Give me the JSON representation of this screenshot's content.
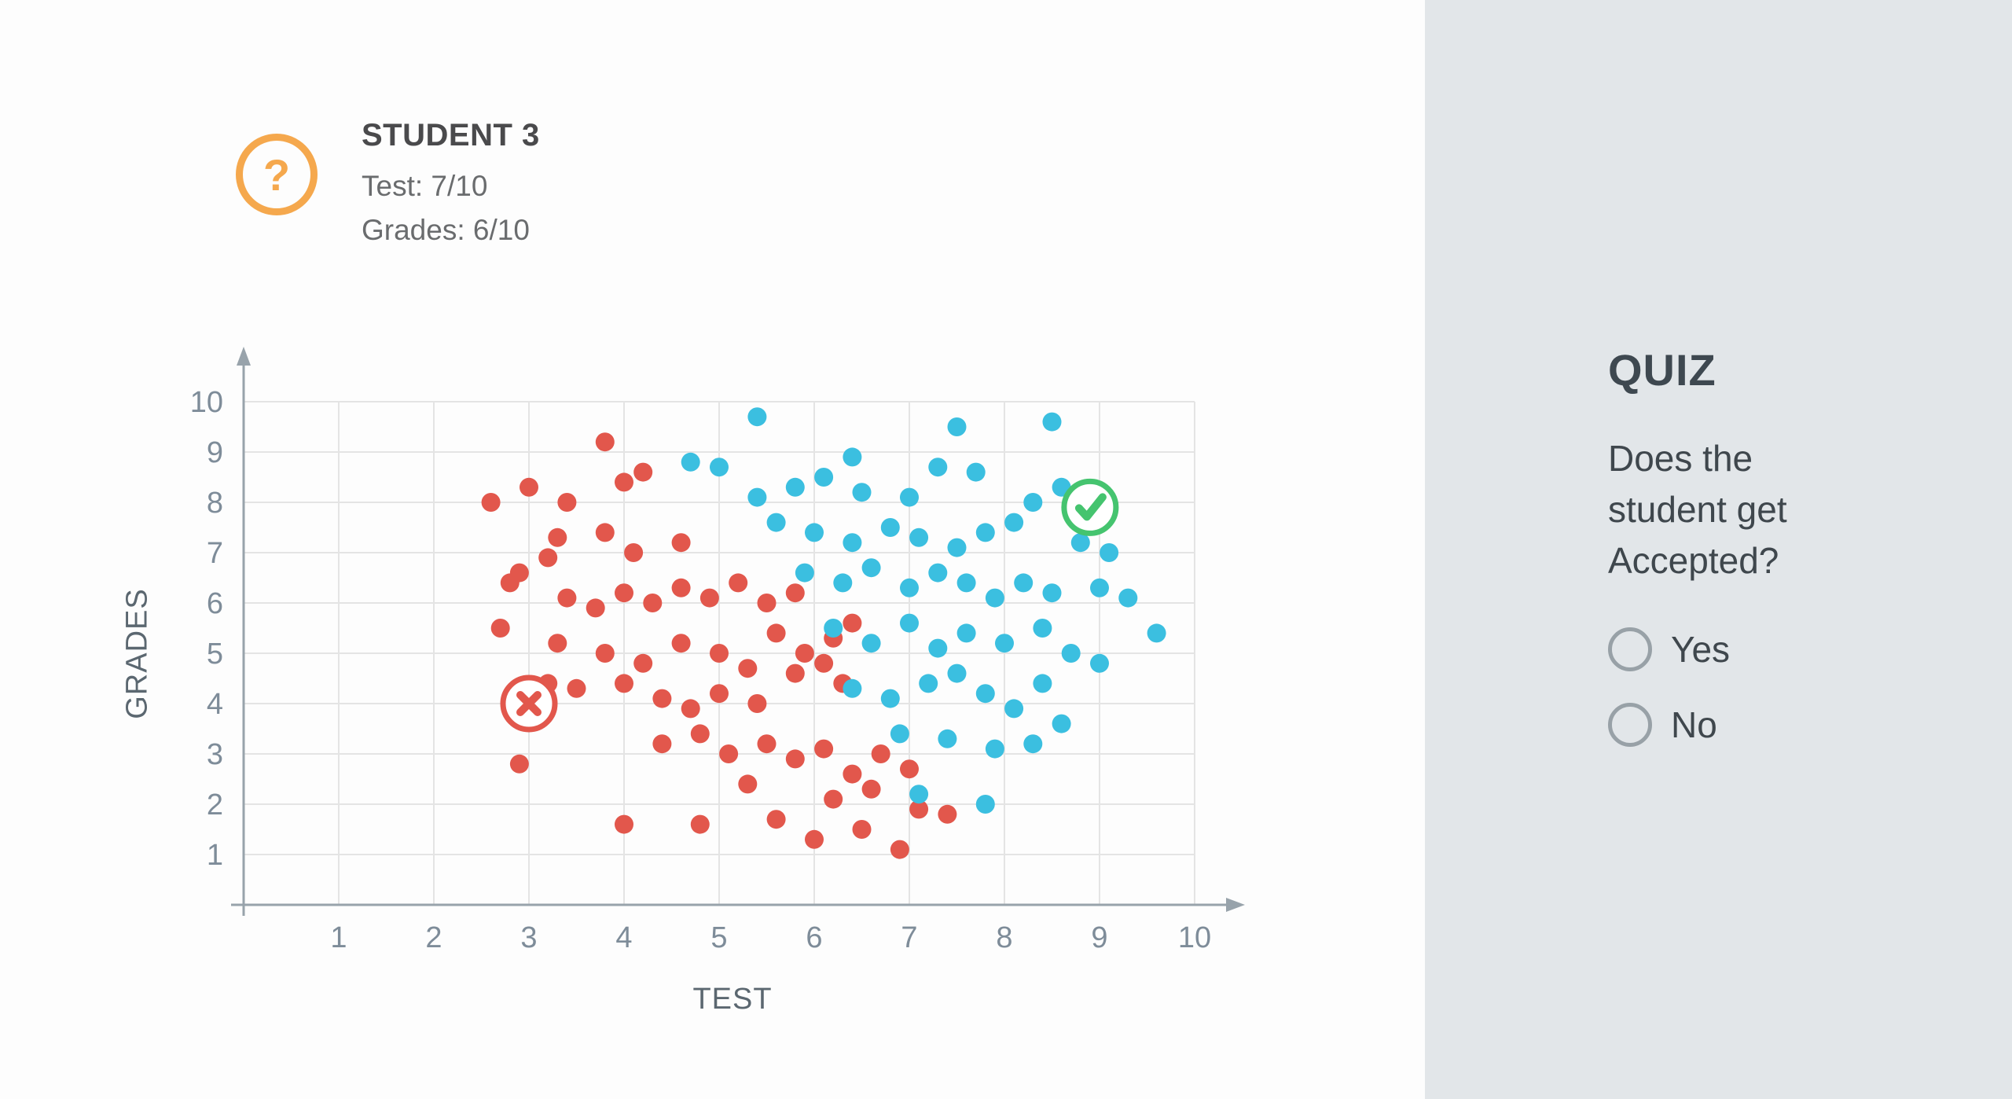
{
  "student_card": {
    "icon_glyph": "?",
    "title": "STUDENT 3",
    "test_line": "Test: 7/10",
    "grades_line": "Grades: 6/10"
  },
  "quiz": {
    "title": "QUIZ",
    "question": "Does the student get Accepted?",
    "options": [
      {
        "label": "Yes"
      },
      {
        "label": "No"
      }
    ]
  },
  "colors": {
    "rejected_red": "#E2574C",
    "accepted_blue": "#3BBFE0",
    "marker_green": "#45C46F",
    "icon_orange": "#F5A84D",
    "panel_gray": "#E2E6E9"
  },
  "chart_data": {
    "type": "scatter",
    "title": "",
    "xlabel": "TEST",
    "ylabel": "GRADES",
    "xlim": [
      0,
      10
    ],
    "ylim": [
      0,
      10
    ],
    "grid": true,
    "point_radius": 12,
    "xticks": [
      1,
      2,
      3,
      4,
      5,
      6,
      7,
      8,
      9,
      10
    ],
    "yticks": [
      1,
      2,
      3,
      4,
      5,
      6,
      7,
      8,
      9,
      10
    ],
    "series": [
      {
        "name": "rejected",
        "color": "#E2574C",
        "points": [
          [
            2.6,
            8.0
          ],
          [
            3.0,
            8.3
          ],
          [
            3.4,
            8.0
          ],
          [
            3.8,
            9.2
          ],
          [
            4.0,
            8.4
          ],
          [
            4.2,
            8.6
          ],
          [
            3.2,
            6.9
          ],
          [
            3.3,
            7.3
          ],
          [
            3.8,
            7.4
          ],
          [
            4.1,
            7.0
          ],
          [
            4.6,
            7.2
          ],
          [
            2.8,
            6.4
          ],
          [
            2.9,
            6.6
          ],
          [
            3.4,
            6.1
          ],
          [
            3.7,
            5.9
          ],
          [
            4.0,
            6.2
          ],
          [
            4.3,
            6.0
          ],
          [
            4.6,
            6.3
          ],
          [
            4.9,
            6.1
          ],
          [
            5.2,
            6.4
          ],
          [
            5.5,
            6.0
          ],
          [
            5.8,
            6.2
          ],
          [
            2.7,
            5.5
          ],
          [
            3.3,
            5.2
          ],
          [
            3.8,
            5.0
          ],
          [
            4.2,
            4.8
          ],
          [
            4.6,
            5.2
          ],
          [
            5.0,
            5.0
          ],
          [
            5.3,
            4.7
          ],
          [
            5.6,
            5.4
          ],
          [
            5.9,
            5.0
          ],
          [
            6.2,
            5.3
          ],
          [
            6.4,
            5.6
          ],
          [
            3.2,
            4.4
          ],
          [
            3.5,
            4.3
          ],
          [
            4.0,
            4.4
          ],
          [
            4.4,
            4.1
          ],
          [
            4.7,
            3.9
          ],
          [
            5.0,
            4.2
          ],
          [
            5.4,
            4.0
          ],
          [
            5.8,
            4.6
          ],
          [
            6.1,
            4.8
          ],
          [
            6.3,
            4.4
          ],
          [
            2.9,
            2.8
          ],
          [
            4.4,
            3.2
          ],
          [
            4.8,
            3.4
          ],
          [
            5.1,
            3.0
          ],
          [
            5.5,
            3.2
          ],
          [
            5.8,
            2.9
          ],
          [
            6.1,
            3.1
          ],
          [
            6.4,
            2.6
          ],
          [
            6.7,
            3.0
          ],
          [
            7.0,
            2.7
          ],
          [
            4.0,
            1.6
          ],
          [
            4.8,
            1.6
          ],
          [
            5.3,
            2.4
          ],
          [
            5.6,
            1.7
          ],
          [
            6.0,
            1.3
          ],
          [
            6.2,
            2.1
          ],
          [
            6.5,
            1.5
          ],
          [
            6.6,
            2.3
          ],
          [
            6.9,
            1.1
          ],
          [
            7.1,
            1.9
          ],
          [
            7.4,
            1.8
          ]
        ]
      },
      {
        "name": "accepted",
        "color": "#3BBFE0",
        "points": [
          [
            5.4,
            9.7
          ],
          [
            7.5,
            9.5
          ],
          [
            8.5,
            9.6
          ],
          [
            6.4,
            8.9
          ],
          [
            4.7,
            8.8
          ],
          [
            5.0,
            8.7
          ],
          [
            5.4,
            8.1
          ],
          [
            5.8,
            8.3
          ],
          [
            6.1,
            8.5
          ],
          [
            6.5,
            8.2
          ],
          [
            7.0,
            8.1
          ],
          [
            7.3,
            8.7
          ],
          [
            7.7,
            8.6
          ],
          [
            8.3,
            8.0
          ],
          [
            8.6,
            8.3
          ],
          [
            5.6,
            7.6
          ],
          [
            6.0,
            7.4
          ],
          [
            6.4,
            7.2
          ],
          [
            6.8,
            7.5
          ],
          [
            7.1,
            7.3
          ],
          [
            7.5,
            7.1
          ],
          [
            7.8,
            7.4
          ],
          [
            8.1,
            7.6
          ],
          [
            8.8,
            7.2
          ],
          [
            9.1,
            7.0
          ],
          [
            5.9,
            6.6
          ],
          [
            6.3,
            6.4
          ],
          [
            6.6,
            6.7
          ],
          [
            7.0,
            6.3
          ],
          [
            7.3,
            6.6
          ],
          [
            7.6,
            6.4
          ],
          [
            7.9,
            6.1
          ],
          [
            8.2,
            6.4
          ],
          [
            8.5,
            6.2
          ],
          [
            9.0,
            6.3
          ],
          [
            9.3,
            6.1
          ],
          [
            6.2,
            5.5
          ],
          [
            6.6,
            5.2
          ],
          [
            7.0,
            5.6
          ],
          [
            7.3,
            5.1
          ],
          [
            7.6,
            5.4
          ],
          [
            8.0,
            5.2
          ],
          [
            8.4,
            5.5
          ],
          [
            8.7,
            5.0
          ],
          [
            9.0,
            4.8
          ],
          [
            9.6,
            5.4
          ],
          [
            6.4,
            4.3
          ],
          [
            6.8,
            4.1
          ],
          [
            7.2,
            4.4
          ],
          [
            7.5,
            4.6
          ],
          [
            7.8,
            4.2
          ],
          [
            8.1,
            3.9
          ],
          [
            8.4,
            4.4
          ],
          [
            6.9,
            3.4
          ],
          [
            7.4,
            3.3
          ],
          [
            7.9,
            3.1
          ],
          [
            8.3,
            3.2
          ],
          [
            8.6,
            3.6
          ],
          [
            7.1,
            2.2
          ],
          [
            7.8,
            2.0
          ]
        ]
      }
    ],
    "markers": [
      {
        "name": "rejected-example",
        "x": 3.0,
        "y": 4.0,
        "symbol": "cross",
        "color": "#E2574C"
      },
      {
        "name": "accepted-example",
        "x": 8.9,
        "y": 7.9,
        "symbol": "check",
        "color": "#45C46F"
      }
    ],
    "legend": "none"
  }
}
